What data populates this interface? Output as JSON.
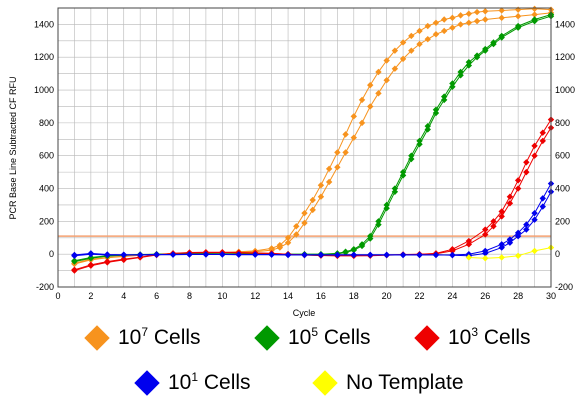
{
  "chart_data": {
    "type": "line",
    "title": "",
    "ylabel": "PCR Base Line Subtracted CF RFU",
    "xlabel": "Cycle",
    "xlim": [
      0,
      30
    ],
    "ylim": [
      -200,
      1500
    ],
    "xticks": [
      0,
      2,
      4,
      6,
      8,
      10,
      12,
      14,
      16,
      18,
      20,
      22,
      24,
      26,
      28,
      30
    ],
    "yticks": [
      -200,
      0,
      200,
      400,
      600,
      800,
      1000,
      1200,
      1400
    ],
    "grid": true,
    "threshold": {
      "value": 110,
      "color": "#f4a070"
    },
    "legend_position": "bottom",
    "series": [
      {
        "name": "10^7 Cells",
        "color": "#f7931e",
        "x": [
          1,
          2,
          3,
          4,
          5,
          6,
          7,
          8,
          9,
          10,
          11,
          12,
          13,
          13.5,
          14,
          14.5,
          15,
          15.5,
          16,
          16.5,
          17,
          17.5,
          18,
          18.5,
          19,
          19.5,
          20,
          20.5,
          21,
          21.5,
          22,
          22.5,
          23,
          23.5,
          24,
          24.5,
          25,
          25.5,
          26,
          27,
          28,
          29,
          30
        ],
        "values": [
          -55,
          -30,
          -20,
          -12,
          -6,
          0,
          4,
          6,
          8,
          10,
          15,
          20,
          35,
          55,
          100,
          170,
          250,
          330,
          420,
          520,
          620,
          730,
          840,
          940,
          1030,
          1110,
          1180,
          1240,
          1290,
          1330,
          1360,
          1390,
          1410,
          1430,
          1440,
          1455,
          1465,
          1475,
          1480,
          1485,
          1490,
          1495,
          1490
        ]
      },
      {
        "name": "10^7 Cells",
        "color": "#f7931e",
        "x": [
          1,
          2,
          3,
          4,
          5,
          6,
          7,
          8,
          9,
          10,
          11,
          12,
          13,
          13.5,
          14,
          14.5,
          15,
          15.5,
          16,
          16.5,
          17,
          17.5,
          18,
          18.5,
          19,
          19.5,
          20,
          20.5,
          21,
          21.5,
          22,
          22.5,
          23,
          23.5,
          24,
          24.5,
          25,
          25.5,
          26,
          27,
          28,
          29,
          30
        ],
        "values": [
          -60,
          -35,
          -22,
          -14,
          -7,
          -1,
          3,
          5,
          7,
          9,
          12,
          15,
          25,
          40,
          70,
          120,
          190,
          270,
          350,
          440,
          530,
          620,
          710,
          800,
          900,
          980,
          1060,
          1130,
          1190,
          1240,
          1280,
          1310,
          1340,
          1360,
          1380,
          1400,
          1410,
          1420,
          1430,
          1440,
          1450,
          1460,
          1470
        ]
      },
      {
        "name": "10^5 Cells",
        "color": "#009900",
        "x": [
          1,
          2,
          3,
          4,
          5,
          6,
          7,
          8,
          9,
          10,
          11,
          12,
          13,
          14,
          15,
          16,
          17,
          17.5,
          18,
          18.5,
          19,
          19.5,
          20,
          20.5,
          21,
          21.5,
          22,
          22.5,
          23,
          23.5,
          24,
          24.5,
          25,
          25.5,
          26,
          26.5,
          27,
          28,
          29,
          30
        ],
        "values": [
          -40,
          -20,
          -10,
          -5,
          -2,
          0,
          2,
          3,
          3,
          2,
          2,
          1,
          1,
          0,
          0,
          0,
          5,
          15,
          30,
          60,
          110,
          200,
          300,
          400,
          500,
          600,
          690,
          780,
          880,
          960,
          1040,
          1110,
          1170,
          1210,
          1250,
          1290,
          1330,
          1390,
          1430,
          1460
        ]
      },
      {
        "name": "10^5 Cells",
        "color": "#009900",
        "x": [
          1,
          2,
          3,
          4,
          5,
          6,
          7,
          8,
          9,
          10,
          11,
          12,
          13,
          14,
          15,
          16,
          17,
          17.5,
          18,
          18.5,
          19,
          19.5,
          20,
          20.5,
          21,
          21.5,
          22,
          22.5,
          23,
          23.5,
          24,
          24.5,
          25,
          25.5,
          26,
          26.5,
          27,
          28,
          29,
          30
        ],
        "values": [
          -45,
          -25,
          -12,
          -6,
          -3,
          -1,
          1,
          2,
          2,
          1,
          1,
          0,
          0,
          -1,
          -1,
          -1,
          3,
          10,
          25,
          50,
          95,
          180,
          280,
          380,
          480,
          580,
          670,
          760,
          860,
          940,
          1020,
          1090,
          1150,
          1200,
          1240,
          1280,
          1320,
          1380,
          1420,
          1450
        ]
      },
      {
        "name": "10^3 Cells",
        "color": "#ee0000",
        "x": [
          1,
          2,
          3,
          4,
          5,
          6,
          7,
          8,
          9,
          10,
          11,
          12,
          13,
          14,
          15,
          16,
          17,
          18,
          19,
          20,
          21,
          22,
          23,
          24,
          25,
          26,
          26.5,
          27,
          27.5,
          28,
          28.5,
          29,
          29.5,
          30
        ],
        "values": [
          -100,
          -70,
          -50,
          -35,
          -20,
          -5,
          5,
          10,
          12,
          12,
          10,
          8,
          5,
          0,
          -5,
          -8,
          -10,
          -10,
          -8,
          -5,
          -2,
          0,
          5,
          30,
          80,
          150,
          200,
          260,
          350,
          450,
          560,
          660,
          740,
          820
        ]
      },
      {
        "name": "10^3 Cells",
        "color": "#ee0000",
        "x": [
          1,
          2,
          3,
          4,
          5,
          6,
          7,
          8,
          9,
          10,
          11,
          12,
          13,
          14,
          15,
          16,
          17,
          18,
          19,
          20,
          21,
          22,
          23,
          24,
          25,
          26,
          26.5,
          27,
          27.5,
          28,
          28.5,
          29,
          29.5,
          30
        ],
        "values": [
          -95,
          -65,
          -45,
          -30,
          -18,
          -4,
          4,
          8,
          10,
          10,
          8,
          6,
          4,
          -1,
          -5,
          -8,
          -10,
          -10,
          -9,
          -6,
          -3,
          -1,
          3,
          20,
          60,
          120,
          170,
          230,
          310,
          400,
          500,
          600,
          690,
          770
        ]
      },
      {
        "name": "10^1 Cells",
        "color": "#0000ee",
        "x": [
          1,
          2,
          3,
          4,
          5,
          6,
          7,
          8,
          9,
          10,
          11,
          12,
          13,
          14,
          15,
          16,
          17,
          18,
          19,
          20,
          21,
          22,
          23,
          24,
          25,
          26,
          27,
          27.5,
          28,
          28.5,
          29,
          29.5,
          30
        ],
        "values": [
          -10,
          0,
          -5,
          -5,
          -5,
          -3,
          -3,
          -2,
          -2,
          -2,
          -3,
          -3,
          -3,
          -5,
          -5,
          -5,
          -5,
          -5,
          -5,
          -5,
          -5,
          -5,
          -5,
          -5,
          0,
          20,
          60,
          90,
          130,
          180,
          250,
          340,
          430
        ]
      },
      {
        "name": "10^1 Cells",
        "color": "#0000ee",
        "x": [
          1,
          2,
          3,
          4,
          5,
          6,
          7,
          8,
          9,
          10,
          11,
          12,
          13,
          14,
          15,
          16,
          17,
          18,
          19,
          20,
          21,
          22,
          23,
          24,
          25,
          26,
          27,
          27.5,
          28,
          28.5,
          29,
          29.5,
          30
        ],
        "values": [
          -5,
          5,
          -2,
          -3,
          -4,
          -2,
          -2,
          -1,
          -1,
          -1,
          -2,
          -2,
          -2,
          -4,
          -4,
          -4,
          -4,
          -4,
          -4,
          -4,
          -4,
          -4,
          -4,
          -6,
          -10,
          5,
          40,
          70,
          110,
          150,
          210,
          290,
          380
        ]
      },
      {
        "name": "No Template",
        "color": "#ffff00",
        "x": [
          25,
          26,
          27,
          28,
          29,
          30
        ],
        "values": [
          -20,
          -25,
          -20,
          -10,
          20,
          40
        ]
      }
    ]
  },
  "legend": {
    "items": [
      {
        "base": "10",
        "exp": "7",
        "suffix": " Cells",
        "color": "#f7931e"
      },
      {
        "base": "10",
        "exp": "5",
        "suffix": " Cells",
        "color": "#009900"
      },
      {
        "base": "10",
        "exp": "3",
        "suffix": " Cells",
        "color": "#ee0000"
      },
      {
        "base": "10",
        "exp": "1",
        "suffix": " Cells",
        "color": "#0000ee"
      },
      {
        "base": "",
        "exp": "",
        "suffix": "No Template",
        "color": "#ffff00"
      }
    ]
  }
}
